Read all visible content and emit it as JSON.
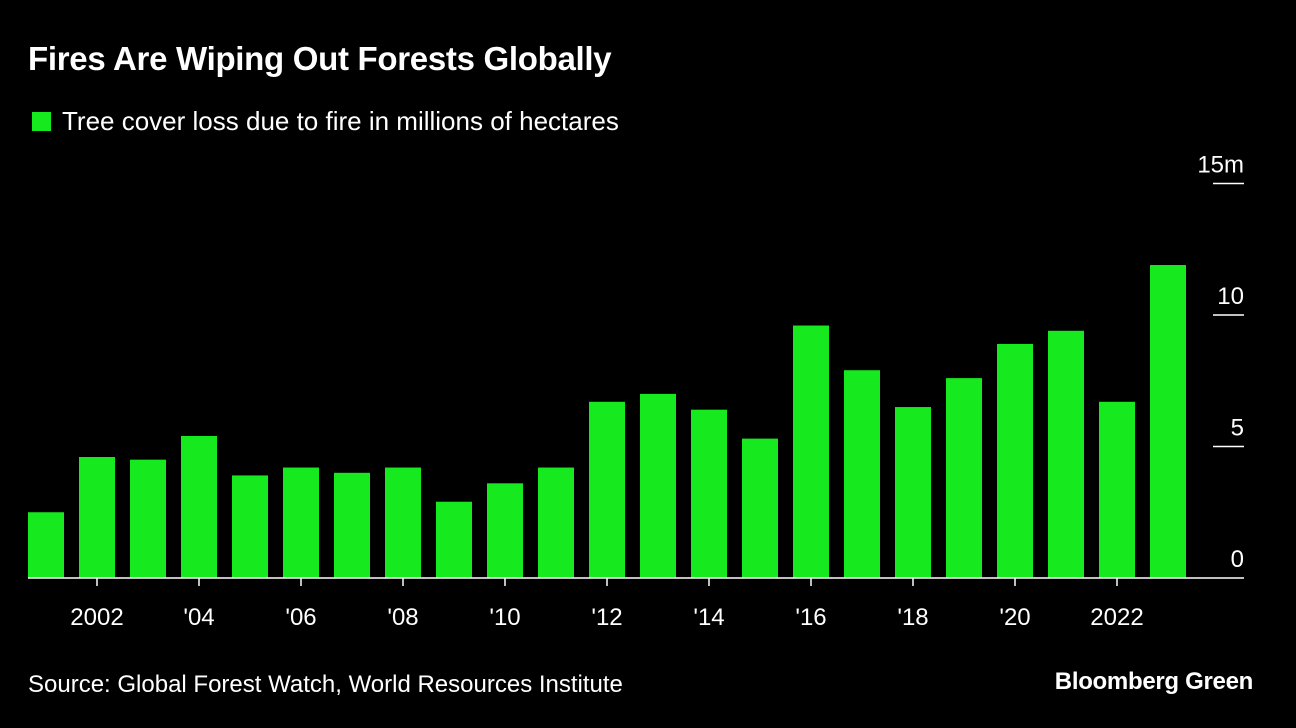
{
  "header": {
    "title": "Fires Are Wiping Out Forests Globally"
  },
  "legend": {
    "label": "Tree cover loss due to fire in millions of hectares"
  },
  "footer": {
    "source": "Source: Global Forest Watch, World Resources Institute",
    "brand": "Bloomberg Green"
  },
  "colors": {
    "background": "#000000",
    "bar": "#16ea1e",
    "text": "#ffffff"
  },
  "chart_data": {
    "type": "bar",
    "title": "Fires Are Wiping Out Forests Globally",
    "categories": [
      "2001",
      "2002",
      "2003",
      "2004",
      "2005",
      "2006",
      "2007",
      "2008",
      "2009",
      "2010",
      "2011",
      "2012",
      "2013",
      "2014",
      "2015",
      "2016",
      "2017",
      "2018",
      "2019",
      "2020",
      "2021",
      "2022",
      "2023"
    ],
    "series": [
      {
        "name": "Tree cover loss due to fire in millions of hectares",
        "values": [
          2.5,
          4.6,
          4.5,
          5.4,
          3.9,
          4.2,
          4.0,
          4.2,
          2.9,
          3.6,
          4.2,
          6.7,
          7.0,
          6.4,
          5.3,
          9.6,
          7.9,
          6.5,
          7.6,
          8.9,
          9.4,
          6.7,
          11.9
        ]
      }
    ],
    "x_tick_labels": [
      {
        "category": "2002",
        "label": "2002"
      },
      {
        "category": "2004",
        "label": "'04"
      },
      {
        "category": "2006",
        "label": "'06"
      },
      {
        "category": "2008",
        "label": "'08"
      },
      {
        "category": "2010",
        "label": "'10"
      },
      {
        "category": "2012",
        "label": "'12"
      },
      {
        "category": "2014",
        "label": "'14"
      },
      {
        "category": "2016",
        "label": "'16"
      },
      {
        "category": "2018",
        "label": "'18"
      },
      {
        "category": "2020",
        "label": "'20"
      },
      {
        "category": "2022",
        "label": "2022"
      }
    ],
    "y_ticks": [
      {
        "value": 0,
        "label": "0"
      },
      {
        "value": 5,
        "label": "5"
      },
      {
        "value": 10,
        "label": "10"
      },
      {
        "value": 15,
        "label": "15m"
      }
    ],
    "ylim": [
      0,
      15
    ],
    "y_axis_side": "right",
    "xlabel": "",
    "ylabel": "",
    "grid": false,
    "legend_position": "top-left"
  }
}
